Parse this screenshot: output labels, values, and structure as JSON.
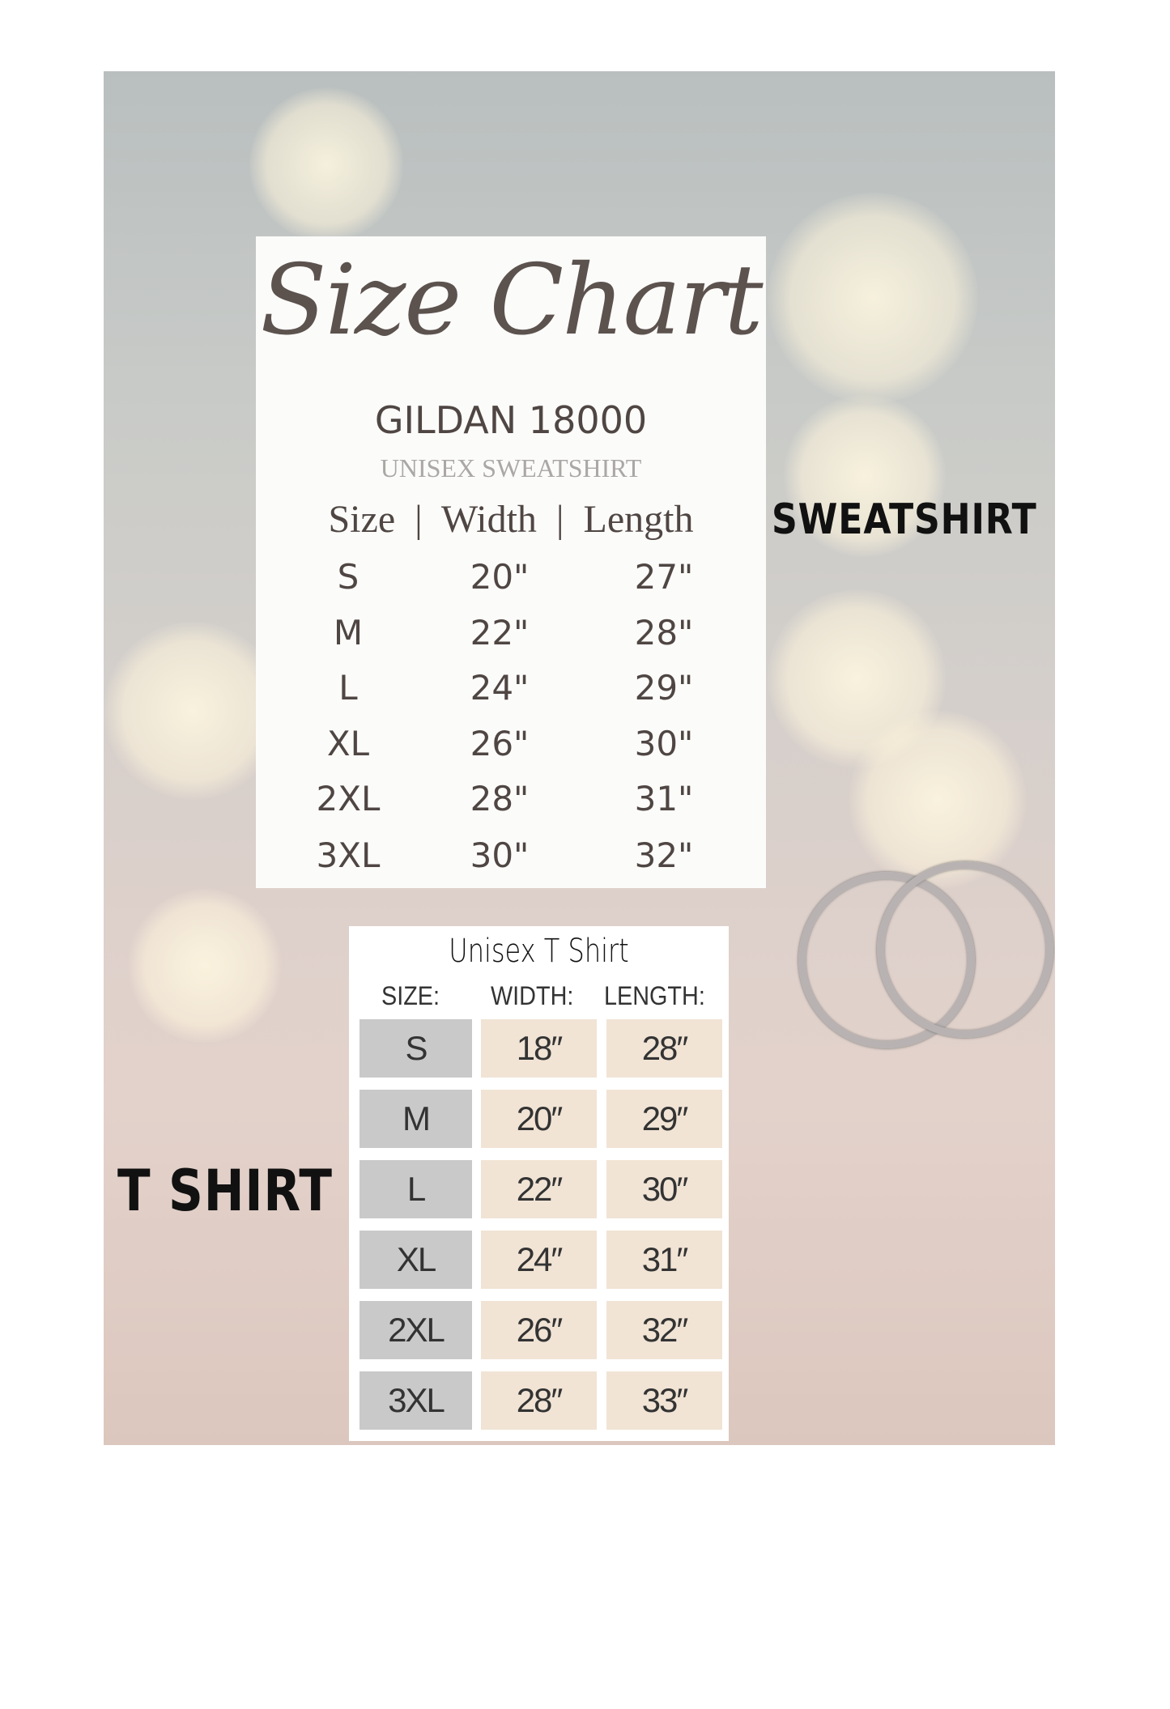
{
  "sweatshirt": {
    "title": "Size Chart",
    "brand": "GILDAN 18000",
    "subtitle": "UNISEX SWEATSHIRT",
    "header": "Size  |  Width  |  Length",
    "side_label": "SWEATSHIRT",
    "rows": [
      {
        "size": "S",
        "width": "20\"",
        "length": "27\""
      },
      {
        "size": "M",
        "width": "22\"",
        "length": "28\""
      },
      {
        "size": "L",
        "width": "24\"",
        "length": "29\""
      },
      {
        "size": "XL",
        "width": "26\"",
        "length": "30\""
      },
      {
        "size": "2XL",
        "width": "28\"",
        "length": "31\""
      },
      {
        "size": "3XL",
        "width": "30\"",
        "length": "32\""
      }
    ]
  },
  "tshirt": {
    "title": "Unisex T Shirt",
    "side_label": "T SHIRT",
    "headers": {
      "size": "SIZE:",
      "width": "WIDTH:",
      "length": "LENGTH:"
    },
    "rows": [
      {
        "size": "S",
        "width": "18″",
        "length": "28″"
      },
      {
        "size": "M",
        "width": "20″",
        "length": "29″"
      },
      {
        "size": "L",
        "width": "22″",
        "length": "30″"
      },
      {
        "size": "XL",
        "width": "24″",
        "length": "31″"
      },
      {
        "size": "2XL",
        "width": "26″",
        "length": "32″"
      },
      {
        "size": "3XL",
        "width": "28″",
        "length": "33″"
      }
    ],
    "colors": {
      "size_cell": "#c9c9c9",
      "value_cell": "#f1e4d5"
    }
  }
}
